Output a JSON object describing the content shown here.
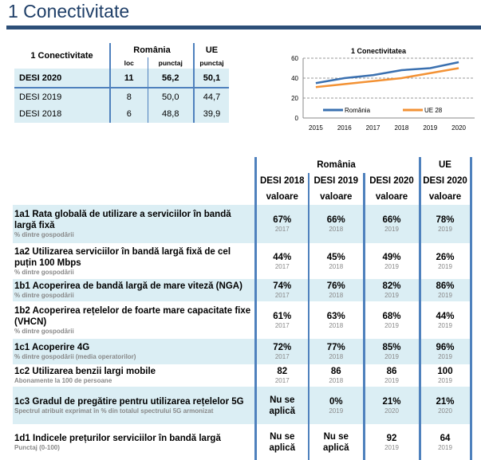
{
  "title": "1 Conectivitate",
  "summary": {
    "header": "1 Conectivitate",
    "romania": "România",
    "ue": "UE",
    "loc": "loc",
    "punctaj": "punctaj",
    "punctaj_ue": "punctaj",
    "rows": [
      {
        "label": "DESI 2020",
        "loc": "11",
        "score": "56,2",
        "eu": "50,1"
      },
      {
        "label": "DESI 2019",
        "loc": "8",
        "score": "50,0",
        "eu": "44,7"
      },
      {
        "label": "DESI 2018",
        "loc": "6",
        "score": "48,8",
        "eu": "39,9"
      }
    ]
  },
  "chart_data": {
    "type": "line",
    "title": "1 Conectivitatea",
    "x": [
      "2015",
      "2016",
      "2017",
      "2018",
      "2019",
      "2020"
    ],
    "ylim": [
      0,
      60
    ],
    "yticks": [
      "0",
      "20",
      "40",
      "60"
    ],
    "series": [
      {
        "name": "România",
        "color": "#3a70b0",
        "values": [
          35,
          40,
          43,
          48,
          50,
          56
        ]
      },
      {
        "name": "UE 28",
        "color": "#f39235",
        "values": [
          31,
          34,
          37,
          40,
          45,
          50
        ]
      }
    ],
    "legend": "bottom-inside"
  },
  "indicators": {
    "romania": "România",
    "ue": "UE",
    "cols": [
      "DESI 2018",
      "DESI 2019",
      "DESI 2020",
      "DESI 2020"
    ],
    "valoare": "valoare",
    "rows": [
      {
        "label": "1a1 Rata globală de utilizare a serviciilor în bandă largă fixă",
        "note": "% dintre gospodării",
        "v": [
          "67%",
          "66%",
          "66%",
          "78%"
        ],
        "y": [
          "2017",
          "2018",
          "2019",
          "2019"
        ]
      },
      {
        "label": "1a2 Utilizarea serviciilor în bandă largă fixă de cel puțin 100 Mbps",
        "note": "% dintre gospodării",
        "v": [
          "44%",
          "45%",
          "49%",
          "26%"
        ],
        "y": [
          "2017",
          "2018",
          "2019",
          "2019"
        ]
      },
      {
        "label": "1b1 Acoperirea de bandă largă de mare viteză (NGA)",
        "note": "% dintre gospodării",
        "v": [
          "74%",
          "76%",
          "82%",
          "86%"
        ],
        "y": [
          "2017",
          "2018",
          "2019",
          "2019"
        ]
      },
      {
        "label": "1b2 Acoperirea rețelelor de foarte mare capacitate fixe (VHCN)",
        "note": "% dintre gospodării",
        "v": [
          "61%",
          "63%",
          "68%",
          "44%"
        ],
        "y": [
          "2017",
          "2018",
          "2019",
          "2019"
        ]
      },
      {
        "label": "1c1 Acoperire 4G",
        "note": "% dintre gospodării (media operatorilor)",
        "v": [
          "72%",
          "77%",
          "85%",
          "96%"
        ],
        "y": [
          "2017",
          "2018",
          "2019",
          "2019"
        ]
      },
      {
        "label": "1c2 Utilizarea benzii largi mobile",
        "note": "Abonamente la 100 de persoane",
        "v": [
          "82",
          "86",
          "86",
          "100"
        ],
        "y": [
          "2017",
          "2018",
          "2019",
          "2019"
        ]
      },
      {
        "label": "1c3 Gradul de pregătire pentru utilizarea rețelelor 5G",
        "note": "Spectrul atribuit exprimat în % din totalul spectrului 5G armonizat",
        "v": [
          "Nu se aplică",
          "0%",
          "21%",
          "21%"
        ],
        "y": [
          "",
          "2019",
          "2020",
          "2020"
        ]
      },
      {
        "label": "1d1 Indicele prețurilor serviciilor în bandă largă",
        "note": "Punctaj (0-100)",
        "v": [
          "Nu se aplică",
          "Nu se aplică",
          "92",
          "64"
        ],
        "y": [
          "",
          "",
          "2019",
          "2019"
        ]
      }
    ]
  }
}
